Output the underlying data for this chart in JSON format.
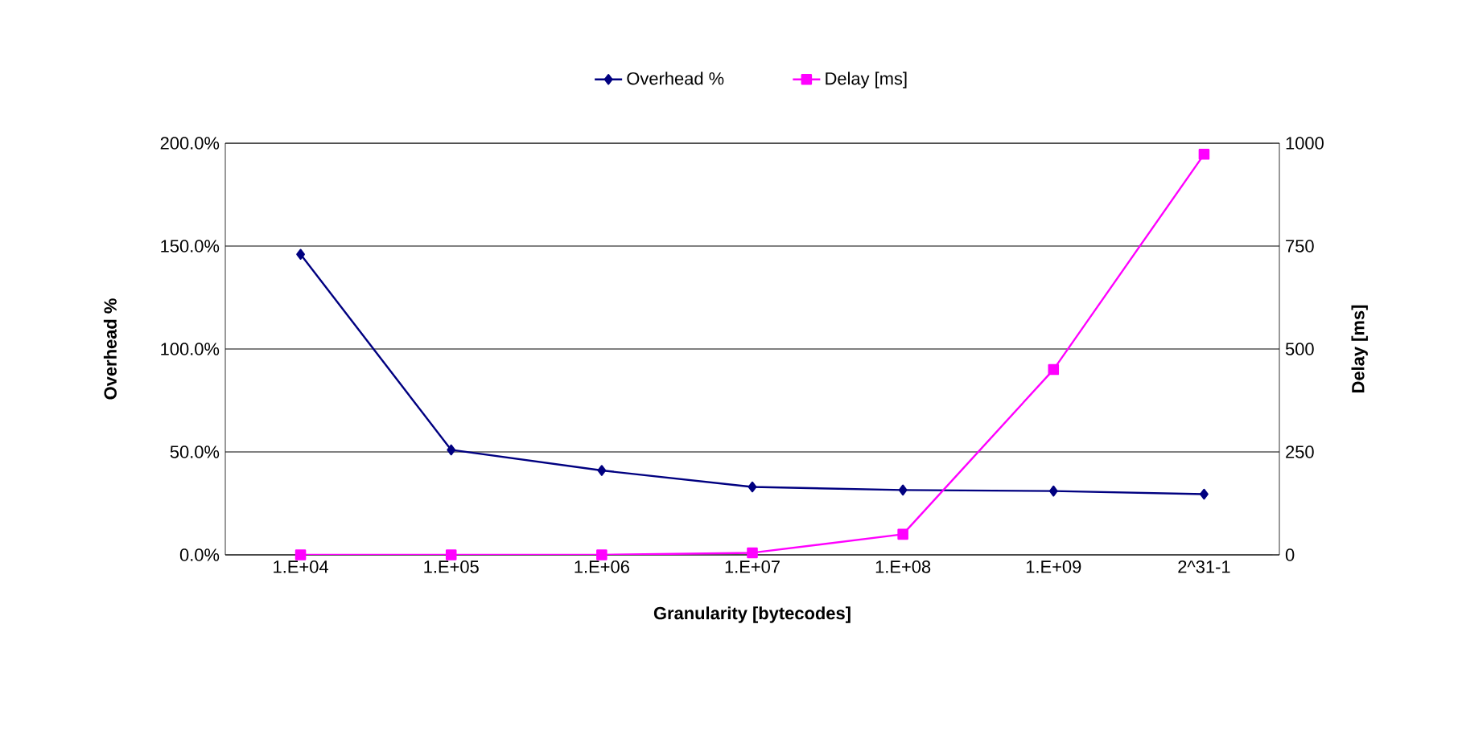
{
  "chart_data": {
    "type": "line",
    "xlabel": "Granularity [bytecodes]",
    "ylabel": "Overhead %",
    "y2label": "Delay [ms]",
    "categories": [
      "1.E+04",
      "1.E+05",
      "1.E+06",
      "1.E+07",
      "1.E+08",
      "1.E+09",
      "2^31-1"
    ],
    "series": [
      {
        "name": "Overhead %",
        "color": "#000080",
        "marker": "diamond",
        "values": [
          146,
          51,
          41,
          33,
          31.5,
          31,
          29.5
        ]
      },
      {
        "name": "Delay [ms]",
        "color": "#ff00ff",
        "marker": "square",
        "axis": "y2",
        "values": [
          0,
          0,
          0,
          5,
          50,
          450,
          973
        ]
      }
    ],
    "ylim": [
      0,
      200
    ],
    "yticks": [
      {
        "value": 0,
        "label": "0.0%"
      },
      {
        "value": 50,
        "label": "50.0%"
      },
      {
        "value": 100,
        "label": "100.0%"
      },
      {
        "value": 150,
        "label": "150.0%"
      },
      {
        "value": 200,
        "label": "200.0%"
      }
    ],
    "y2lim": [
      0,
      1000
    ],
    "y2ticks": [
      0,
      250,
      500,
      750,
      1000
    ],
    "grid": "y",
    "legend": "top",
    "line_style": "solid"
  }
}
